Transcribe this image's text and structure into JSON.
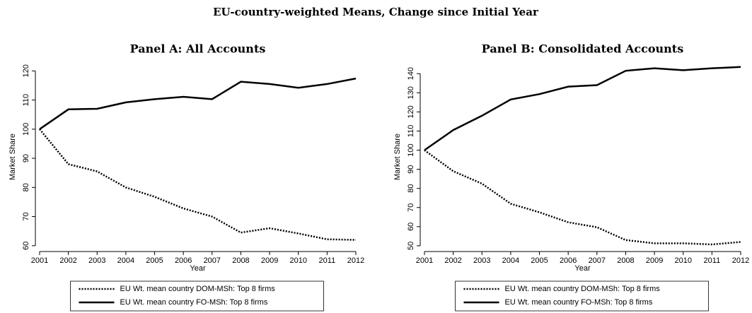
{
  "title": "EU-country-weighted Means, Change since Initial Year",
  "chart_data": [
    {
      "type": "line",
      "title": "Panel A: All Accounts",
      "xlabel": "Year",
      "ylabel": "Market Share",
      "x": [
        2001,
        2002,
        2003,
        2004,
        2005,
        2006,
        2007,
        2008,
        2009,
        2010,
        2011,
        2012
      ],
      "xlim": [
        2001,
        2012
      ],
      "xticks": [
        2001,
        2002,
        2003,
        2004,
        2005,
        2006,
        2007,
        2008,
        2009,
        2010,
        2011,
        2012
      ],
      "ylim": [
        58,
        123
      ],
      "yticks": [
        60,
        70,
        80,
        90,
        100,
        110,
        120
      ],
      "series": [
        {
          "name": "EU Wt. mean country DOM-MSh: Top 8 firms",
          "color": "#000000",
          "dash": "dotted",
          "values": [
            100,
            88,
            85.5,
            80,
            76.8,
            72.8,
            70,
            64.5,
            66,
            64.2,
            62.2,
            62
          ]
        },
        {
          "name": "EU Wt. mean country FO-MSh: Top 8 firms",
          "color": "#000000",
          "dash": "solid",
          "values": [
            100,
            106.8,
            107,
            109.2,
            110.3,
            111.1,
            110.3,
            116.3,
            115.5,
            114.2,
            115.5,
            117.4
          ]
        }
      ]
    },
    {
      "type": "line",
      "title": "Panel B: Consolidated Accounts",
      "xlabel": "Year",
      "ylabel": "Market Share",
      "x": [
        2001,
        2002,
        2003,
        2004,
        2005,
        2006,
        2007,
        2008,
        2009,
        2010,
        2011,
        2012
      ],
      "xlim": [
        2001,
        2012
      ],
      "xticks": [
        2001,
        2002,
        2003,
        2004,
        2005,
        2006,
        2007,
        2008,
        2009,
        2010,
        2011,
        2012
      ],
      "ylim": [
        47,
        146
      ],
      "yticks": [
        50,
        60,
        70,
        80,
        90,
        100,
        110,
        120,
        130,
        140
      ],
      "series": [
        {
          "name": "EU Wt. mean country DOM-MSh: Top 8 firms",
          "color": "#000000",
          "dash": "dotted",
          "values": [
            100,
            89,
            82.5,
            72,
            67.5,
            62.3,
            59.7,
            53,
            51.3,
            51.3,
            50.7,
            52
          ]
        },
        {
          "name": "EU Wt. mean country FO-MSh: Top 8 firms",
          "color": "#000000",
          "dash": "solid",
          "values": [
            100,
            110.5,
            118,
            126.5,
            129.3,
            133.2,
            134,
            141.5,
            142.8,
            141.8,
            142.8,
            143.5
          ]
        }
      ]
    }
  ]
}
